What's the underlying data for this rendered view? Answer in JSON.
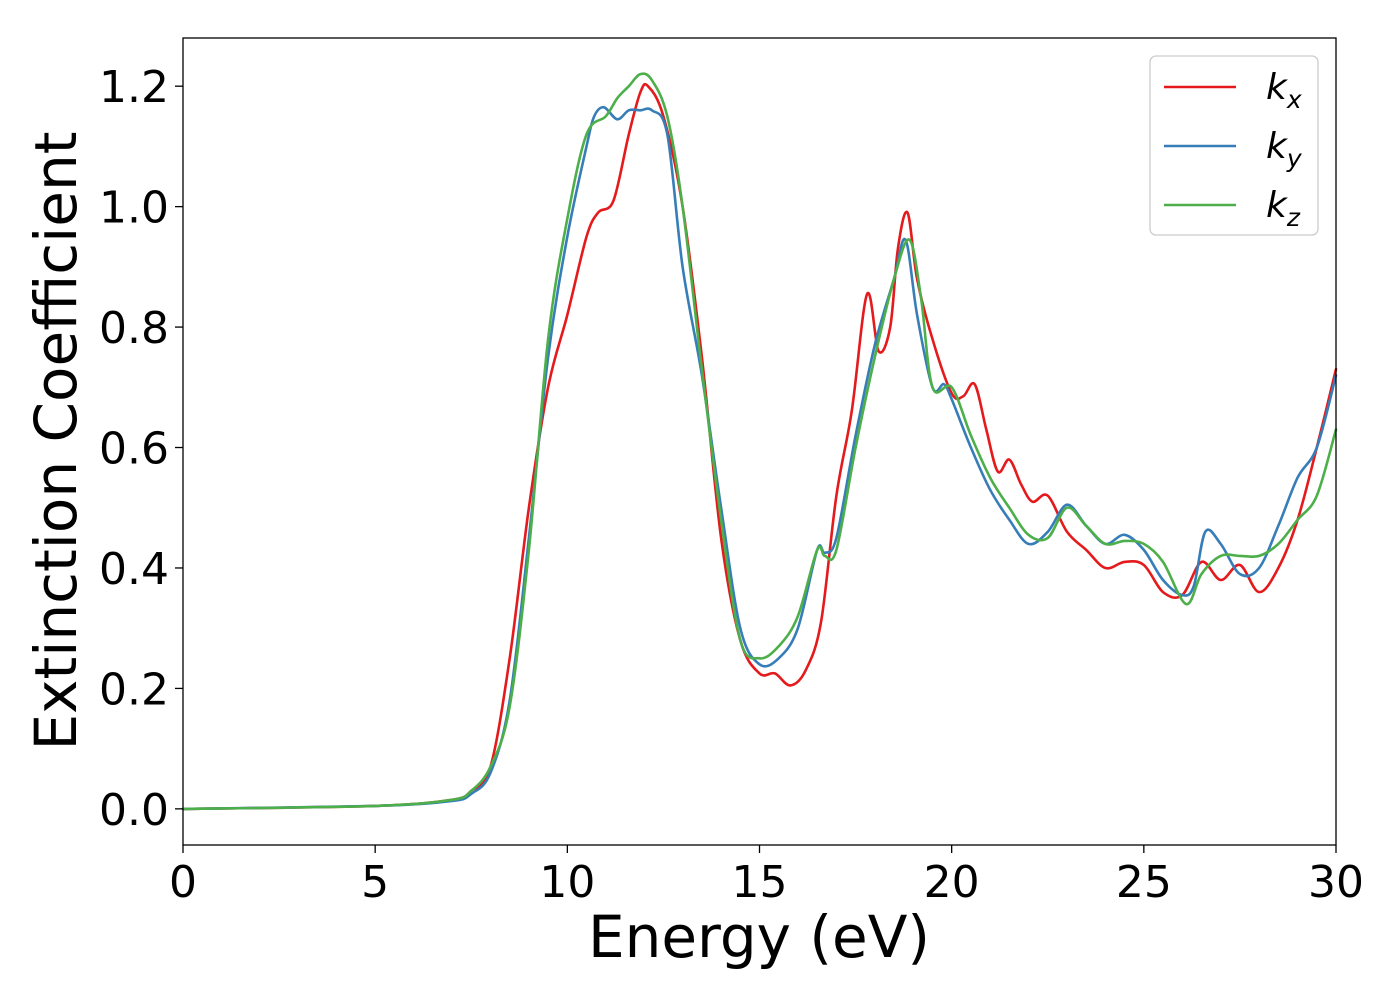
{
  "chart_data": {
    "type": "line",
    "title": "",
    "xlabel": "Energy (eV)",
    "ylabel": "Extinction Coefficient",
    "xlim": [
      0,
      30
    ],
    "ylim": [
      -0.06,
      1.28
    ],
    "xticks": [
      0,
      5,
      10,
      15,
      20,
      25,
      30
    ],
    "xtick_labels": [
      "0",
      "5",
      "10",
      "15",
      "20",
      "25",
      "30"
    ],
    "yticks": [
      0.0,
      0.2,
      0.4,
      0.6,
      0.8,
      1.0,
      1.2
    ],
    "ytick_labels": [
      "0.0",
      "0.2",
      "0.4",
      "0.6",
      "0.8",
      "1.0",
      "1.2"
    ],
    "grid": false,
    "legend_position": "top-right",
    "series": [
      {
        "name": "k",
        "sub": "x",
        "color": "#e41a1c",
        "x": [
          0,
          5,
          7,
          7.5,
          8,
          8.5,
          9,
          9.5,
          10,
          10.5,
          10.8,
          11.2,
          11.6,
          11.9,
          12.1,
          12.5,
          13,
          13.5,
          14,
          14.5,
          15,
          15.4,
          15.8,
          16.2,
          16.6,
          17,
          17.4,
          17.8,
          18.1,
          18.4,
          18.6,
          18.85,
          19.1,
          19.5,
          20,
          20.3,
          20.6,
          20.9,
          21.2,
          21.5,
          21.8,
          22.1,
          22.5,
          23,
          23.5,
          24,
          24.5,
          25,
          25.5,
          26,
          26.5,
          27,
          27.5,
          28,
          28.5,
          29,
          29.5,
          30
        ],
        "values": [
          0.0,
          0.005,
          0.015,
          0.03,
          0.07,
          0.25,
          0.5,
          0.7,
          0.82,
          0.95,
          0.99,
          1.01,
          1.12,
          1.19,
          1.2,
          1.15,
          1.0,
          0.75,
          0.45,
          0.28,
          0.225,
          0.225,
          0.205,
          0.23,
          0.31,
          0.52,
          0.66,
          0.855,
          0.76,
          0.8,
          0.93,
          0.99,
          0.88,
          0.78,
          0.69,
          0.685,
          0.705,
          0.63,
          0.56,
          0.58,
          0.54,
          0.51,
          0.52,
          0.46,
          0.43,
          0.4,
          0.41,
          0.405,
          0.36,
          0.355,
          0.41,
          0.38,
          0.405,
          0.36,
          0.4,
          0.48,
          0.6,
          0.73
        ]
      },
      {
        "name": "k",
        "sub": "y",
        "color": "#377eb8",
        "x": [
          0,
          5,
          7,
          7.5,
          8,
          8.5,
          9,
          9.5,
          10,
          10.5,
          10.7,
          10.95,
          11.3,
          11.6,
          11.9,
          12.2,
          12.6,
          13,
          13.5,
          14,
          14.5,
          15,
          15.5,
          16,
          16.5,
          16.7,
          17,
          17.5,
          18,
          18.5,
          18.8,
          19.1,
          19.5,
          19.8,
          20,
          20.5,
          21,
          21.5,
          22,
          22.5,
          23,
          23.5,
          24,
          24.5,
          25,
          25.5,
          26,
          26.3,
          26.6,
          27,
          27.5,
          28,
          28.5,
          29,
          29.5,
          30
        ],
        "values": [
          0.0,
          0.005,
          0.013,
          0.025,
          0.06,
          0.18,
          0.45,
          0.75,
          0.95,
          1.1,
          1.15,
          1.165,
          1.145,
          1.16,
          1.16,
          1.16,
          1.12,
          0.9,
          0.72,
          0.5,
          0.3,
          0.24,
          0.25,
          0.3,
          0.43,
          0.425,
          0.45,
          0.62,
          0.77,
          0.88,
          0.945,
          0.82,
          0.7,
          0.705,
          0.68,
          0.6,
          0.53,
          0.48,
          0.44,
          0.46,
          0.505,
          0.47,
          0.44,
          0.455,
          0.43,
          0.38,
          0.355,
          0.37,
          0.46,
          0.44,
          0.39,
          0.4,
          0.47,
          0.55,
          0.6,
          0.72
        ]
      },
      {
        "name": "k",
        "sub": "z",
        "color": "#4daf4a",
        "x": [
          0,
          5,
          7,
          7.5,
          8,
          8.5,
          9,
          9.5,
          10,
          10.5,
          11,
          11.3,
          11.6,
          11.9,
          12.2,
          12.6,
          13,
          13.5,
          14,
          14.5,
          15,
          15.5,
          16,
          16.5,
          16.7,
          17,
          17.5,
          18,
          18.5,
          18.9,
          19.2,
          19.5,
          20,
          20.5,
          21,
          21.5,
          22,
          22.5,
          23,
          23.5,
          24,
          24.5,
          25,
          25.5,
          26.1,
          26.5,
          27,
          27.5,
          28,
          28.5,
          29,
          29.5,
          30
        ],
        "values": [
          0.0,
          0.005,
          0.015,
          0.03,
          0.07,
          0.17,
          0.43,
          0.78,
          0.98,
          1.12,
          1.15,
          1.18,
          1.2,
          1.22,
          1.21,
          1.15,
          1.0,
          0.73,
          0.48,
          0.28,
          0.25,
          0.27,
          0.32,
          0.43,
          0.42,
          0.43,
          0.6,
          0.75,
          0.88,
          0.945,
          0.85,
          0.7,
          0.7,
          0.62,
          0.55,
          0.5,
          0.455,
          0.45,
          0.5,
          0.47,
          0.44,
          0.445,
          0.44,
          0.41,
          0.34,
          0.39,
          0.42,
          0.42,
          0.42,
          0.44,
          0.48,
          0.52,
          0.63
        ]
      }
    ]
  }
}
